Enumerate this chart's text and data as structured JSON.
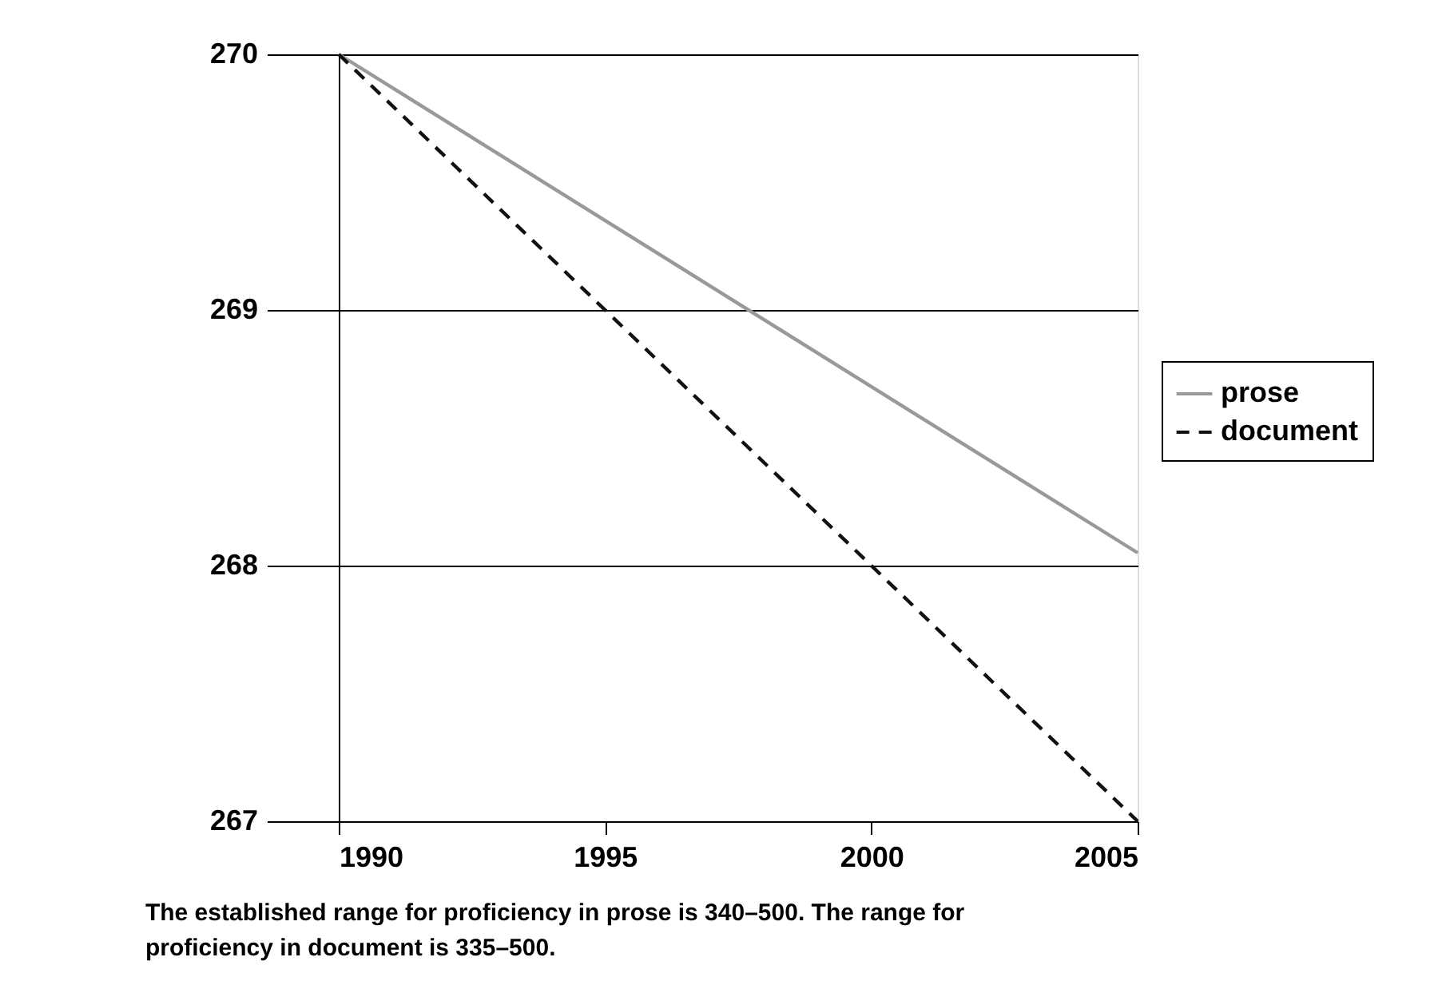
{
  "chart_data": {
    "type": "line",
    "x": [
      1990,
      2005
    ],
    "series": [
      {
        "name": "prose",
        "color": "#999999",
        "line_style": "solid",
        "values": [
          270,
          268.05
        ]
      },
      {
        "name": "document",
        "color": "#111111",
        "line_style": "dashed",
        "values": [
          270,
          267
        ]
      }
    ],
    "xlim": [
      1990,
      2005
    ],
    "xticks": [
      1990,
      1995,
      2000,
      2005
    ],
    "ylim": [
      267,
      270
    ],
    "yticks": [
      267,
      268,
      269,
      270
    ],
    "grid": "y",
    "legend": "right",
    "marker": "none",
    "annotations": [
      "The established range for proficiency in prose is 340–500. The range for proficiency in document is 335–500."
    ]
  }
}
